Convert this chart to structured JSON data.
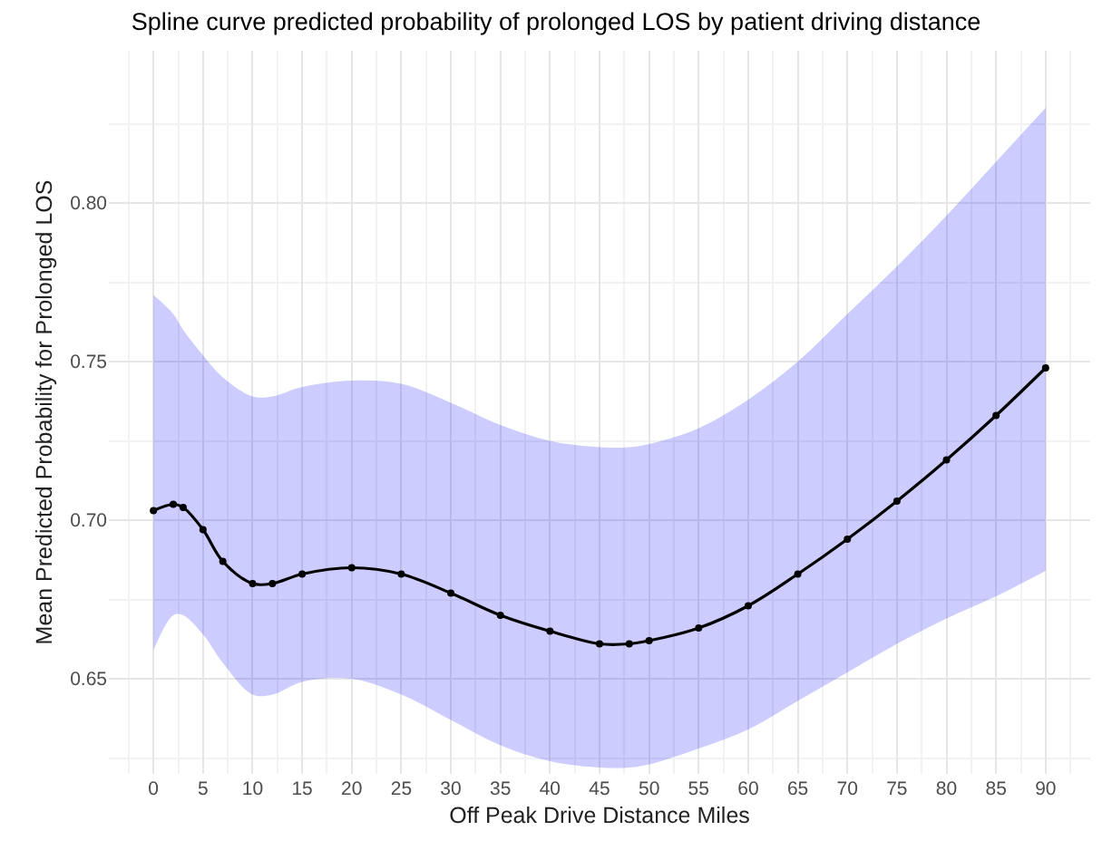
{
  "chart_data": {
    "type": "line",
    "title": "Spline curve predicted probability of prolonged LOS by patient driving distance",
    "xlabel": "Off Peak Drive Distance Miles",
    "ylabel": "Mean Predicted Probability for Prolonged LOS",
    "series": [
      {
        "color": "#000000",
        "x": [
          0,
          2,
          3,
          5,
          7,
          10,
          12,
          15,
          20,
          25,
          30,
          35,
          40,
          45,
          48,
          50,
          55,
          60,
          65,
          70,
          75,
          80,
          85,
          90
        ],
        "values": [
          0.703,
          0.705,
          0.704,
          0.697,
          0.687,
          0.68,
          0.68,
          0.683,
          0.685,
          0.683,
          0.677,
          0.67,
          0.665,
          0.661,
          0.661,
          0.662,
          0.666,
          0.673,
          0.683,
          0.694,
          0.706,
          0.719,
          0.733,
          0.748
        ],
        "upper": [
          0.771,
          0.765,
          0.76,
          0.752,
          0.745,
          0.739,
          0.739,
          0.742,
          0.744,
          0.743,
          0.737,
          0.73,
          0.725,
          0.723,
          0.723,
          0.724,
          0.729,
          0.738,
          0.75,
          0.765,
          0.78,
          0.796,
          0.813,
          0.83
        ],
        "lower": [
          0.659,
          0.67,
          0.67,
          0.664,
          0.655,
          0.645,
          0.645,
          0.649,
          0.65,
          0.645,
          0.637,
          0.629,
          0.624,
          0.622,
          0.622,
          0.623,
          0.628,
          0.634,
          0.643,
          0.652,
          0.661,
          0.669,
          0.676,
          0.684
        ]
      }
    ],
    "xlim": [
      -4.5,
      94.5
    ],
    "ylim": [
      0.62,
      0.848
    ],
    "xticks": [
      0,
      5,
      10,
      15,
      20,
      25,
      30,
      35,
      40,
      45,
      50,
      55,
      60,
      65,
      70,
      75,
      80,
      85,
      90
    ],
    "yticks": [
      {
        "value": 0.65,
        "label": "0.65"
      },
      {
        "value": 0.7,
        "label": "0.70"
      },
      {
        "value": 0.75,
        "label": "0.75"
      },
      {
        "value": 0.8,
        "label": "0.80"
      }
    ],
    "grid": true,
    "marker": "circle",
    "line_style": "solid"
  }
}
